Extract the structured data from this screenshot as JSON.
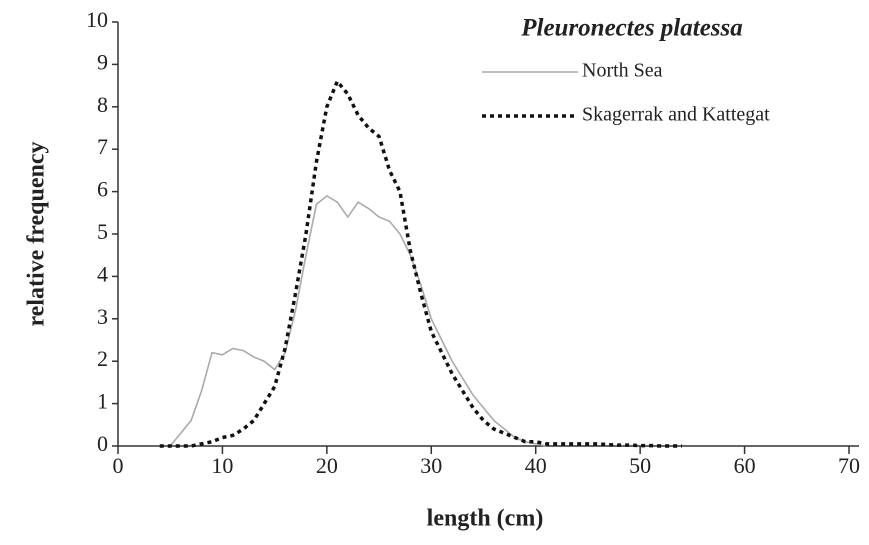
{
  "chart_data": {
    "type": "line",
    "legend_title": "Pleuronectes platessa",
    "xlabel": "length (cm)",
    "ylabel": "relative frequency",
    "legend": "upper right",
    "x": [
      4,
      5,
      6,
      7,
      8,
      9,
      10,
      11,
      12,
      13,
      14,
      15,
      16,
      17,
      18,
      19,
      20,
      21,
      22,
      23,
      24,
      25,
      26,
      27,
      28,
      29,
      30,
      31,
      32,
      33,
      34,
      35,
      36,
      37,
      38,
      39,
      40,
      41,
      42,
      43,
      44,
      45,
      46,
      47,
      48,
      49,
      50,
      51,
      52,
      53,
      54
    ],
    "series": [
      {
        "name": "North Sea",
        "color": "#aaaaaa",
        "dash": "solid",
        "values": [
          null,
          0,
          0.3,
          0.6,
          1.3,
          2.2,
          2.15,
          2.3,
          2.25,
          2.1,
          2.0,
          1.8,
          2.2,
          3.2,
          4.5,
          5.7,
          5.9,
          5.75,
          5.4,
          5.75,
          5.6,
          5.4,
          5.3,
          5.0,
          4.5,
          3.8,
          3.0,
          2.5,
          2.0,
          1.6,
          1.2,
          0.9,
          0.6,
          0.4,
          0.2,
          0.1,
          0.05,
          0,
          null,
          null,
          null,
          null,
          null,
          null,
          null,
          null,
          null,
          null,
          null,
          null,
          null
        ]
      },
      {
        "name": "Skagerrak and Kattegat",
        "color": "#111111",
        "dash": "dotted",
        "values": [
          0,
          0,
          0,
          0,
          0.05,
          0.1,
          0.2,
          0.25,
          0.4,
          0.6,
          1.0,
          1.4,
          2.3,
          3.6,
          5.0,
          6.7,
          8.0,
          8.6,
          8.3,
          7.8,
          7.5,
          7.3,
          6.5,
          6.0,
          4.6,
          3.6,
          2.7,
          2.2,
          1.7,
          1.3,
          0.9,
          0.6,
          0.4,
          0.3,
          0.2,
          0.1,
          0.1,
          0.05,
          0.05,
          0.05,
          0.05,
          0.05,
          0.05,
          0.03,
          0.02,
          0.02,
          0.01,
          0.01,
          0,
          0,
          0
        ]
      }
    ],
    "xlim": [
      0,
      70
    ],
    "xticks": [
      0,
      10,
      20,
      30,
      40,
      50,
      60,
      70
    ],
    "ylim": [
      0,
      10
    ],
    "yticks": [
      0,
      1,
      2,
      3,
      4,
      5,
      6,
      7,
      8,
      9,
      10
    ]
  }
}
